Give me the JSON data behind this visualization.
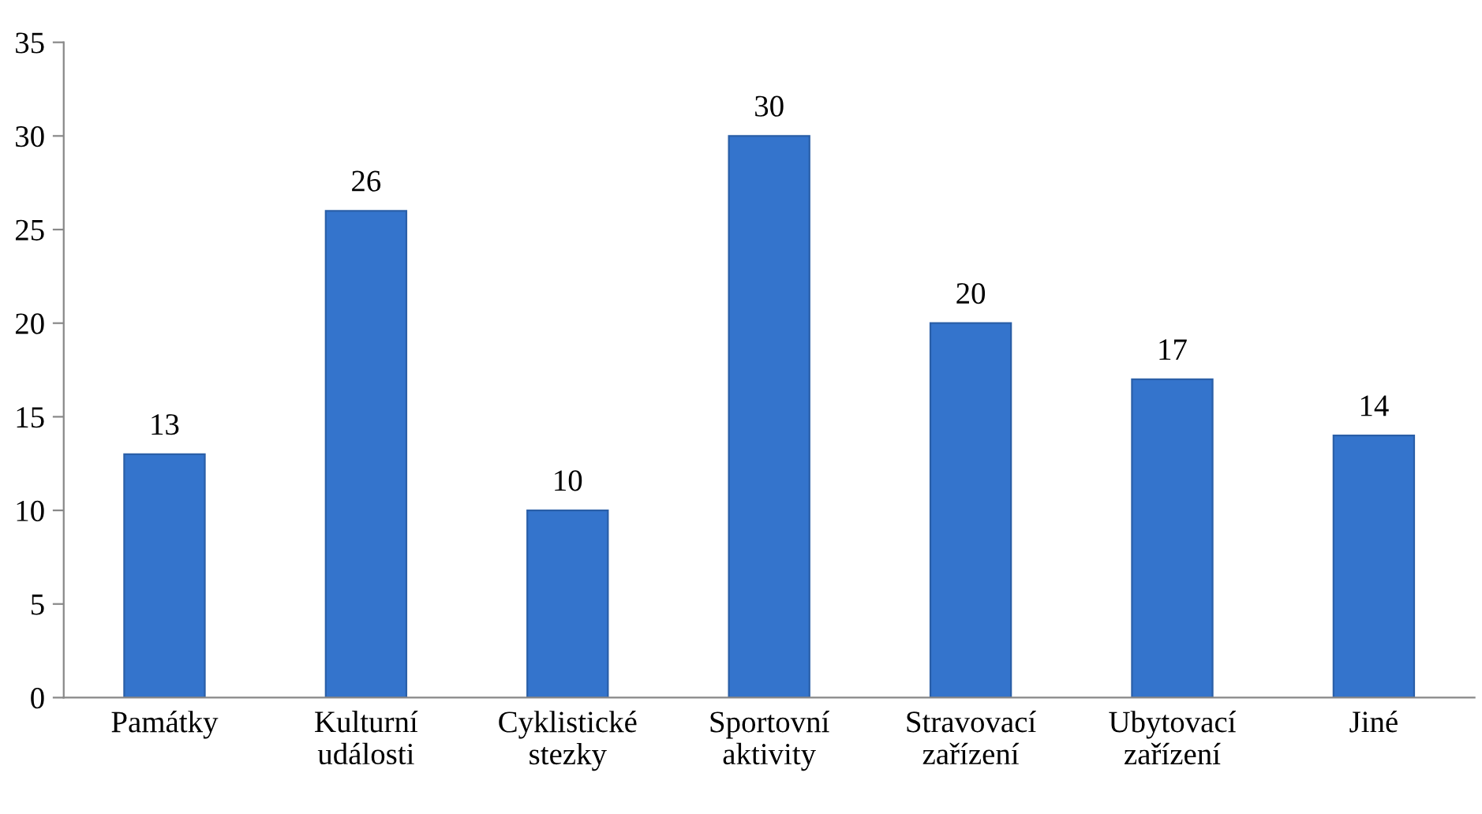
{
  "chart_data": {
    "type": "bar",
    "categories": [
      "Památky",
      "Kulturní\nudálosti",
      "Cyklistické\nstezky",
      "Sportovní\naktivity",
      "Stravovací\nzařízení",
      "Ubytovací\nzařízení",
      "Jiné"
    ],
    "values": [
      13,
      26,
      10,
      30,
      20,
      17,
      14
    ],
    "color": "#3474cc",
    "ylim": [
      0,
      35
    ],
    "yticks": [
      0,
      5,
      10,
      15,
      20,
      25,
      30,
      35
    ],
    "data_labels": true,
    "grid": false,
    "legend": false
  }
}
